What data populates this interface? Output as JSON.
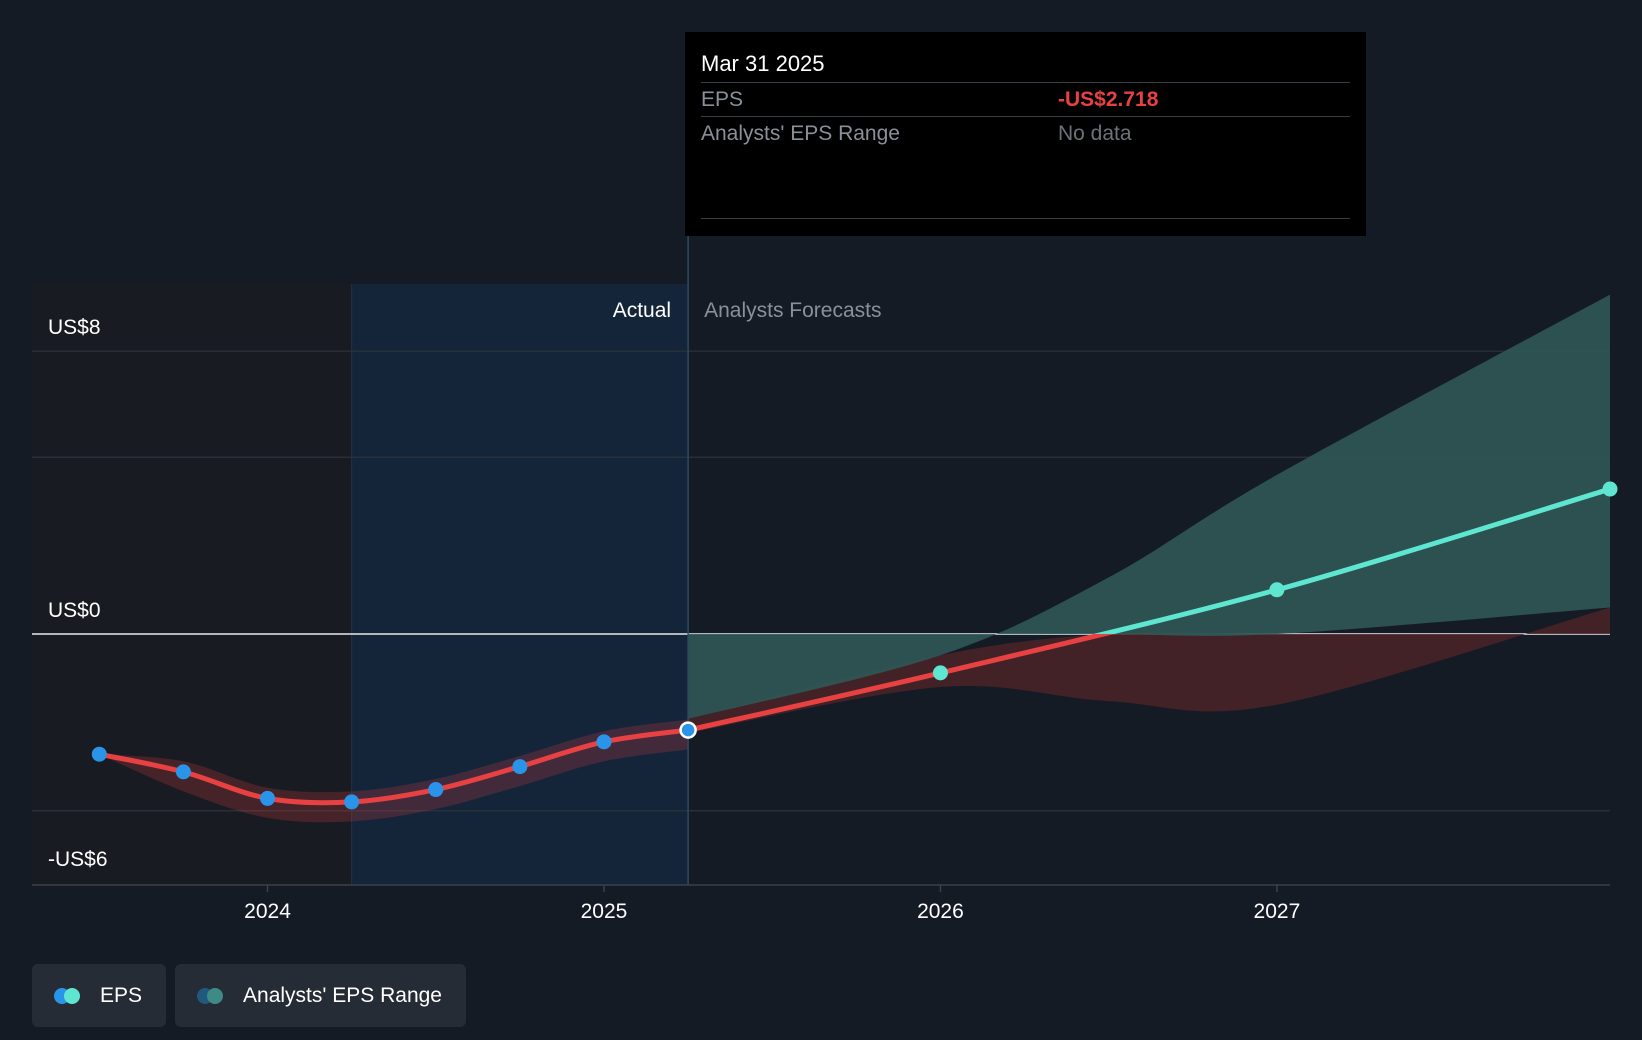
{
  "colors": {
    "background": "#151b24",
    "actual_line": "#e84142",
    "actual_point": "#2994e8",
    "forecast_line": "#5ee6d0",
    "forecast_range_fill": "#2f5855",
    "negative_range_fill": "#4a2328",
    "actual_region": "#14253a"
  },
  "chart_data": {
    "type": "line",
    "title": "",
    "xlabel": "",
    "ylabel": "",
    "x_ticks": [
      2024,
      2025,
      2026,
      2027
    ],
    "x_tick_labels": [
      "2024",
      "2025",
      "2026",
      "2027"
    ],
    "x_range": [
      2023.3,
      2027.99
    ],
    "y_range": [
      -7.1,
      9.9
    ],
    "y_ticks": [
      8,
      0,
      -6
    ],
    "y_tick_labels": [
      "US$8",
      "US$0",
      "-US$6"
    ],
    "gridlines_y": [
      8,
      5,
      0,
      -5
    ],
    "actual_label": "Actual",
    "forecast_label": "Analysts Forecasts",
    "divider_x": 2025.25,
    "actual_region_start": 2024.25,
    "series": [
      {
        "name": "EPS",
        "kind": "actual",
        "x": [
          2023.5,
          2023.75,
          2024.0,
          2024.25,
          2024.5,
          2024.75,
          2025.0,
          2025.25
        ],
        "values": [
          -3.4,
          -3.9,
          -4.65,
          -4.75,
          -4.4,
          -3.75,
          -3.05,
          -2.718
        ]
      },
      {
        "name": "EPS",
        "kind": "forecast",
        "x": [
          2025.25,
          2026.0,
          2027.0,
          2027.99
        ],
        "values": [
          -2.718,
          -1.1,
          1.25,
          4.1
        ]
      },
      {
        "name": "Analysts' EPS Range",
        "kind": "range",
        "x": [
          2025.25,
          2026.0,
          2026.5,
          2027.0,
          2027.99
        ],
        "upper": [
          -2.4,
          -0.6,
          1.6,
          4.5,
          9.6
        ],
        "lower": [
          -2.8,
          -1.5,
          -1.9,
          -2.0,
          0.75
        ]
      }
    ]
  },
  "tooltip": {
    "date": "Mar 31 2025",
    "rows": [
      {
        "label": "EPS",
        "value": "-US$2.718"
      },
      {
        "label": "Analysts' EPS Range",
        "value": "No data"
      }
    ]
  },
  "legend": {
    "items": [
      {
        "label": "EPS",
        "color1": "#2994e8",
        "color2": "#5ee6d0"
      },
      {
        "label": "Analysts' EPS Range",
        "color1": "#1f5a7e",
        "color2": "#3e8a84"
      }
    ]
  }
}
